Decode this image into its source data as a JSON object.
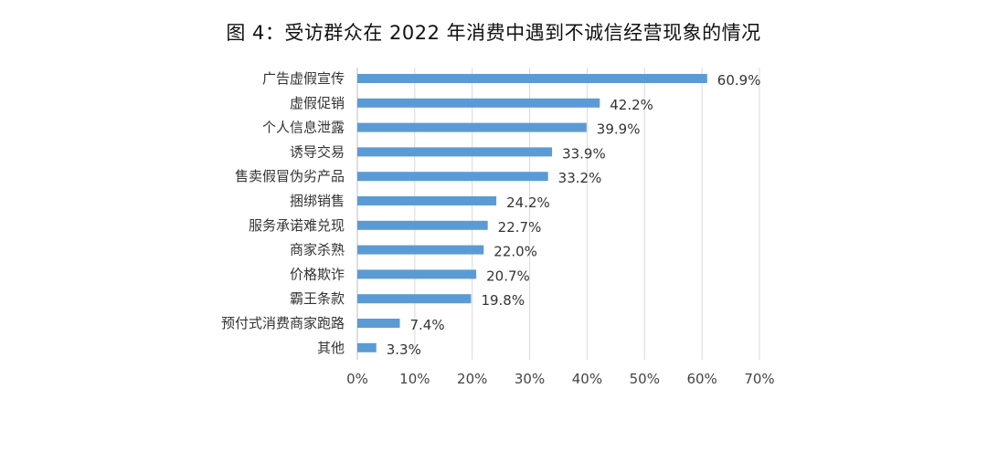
{
  "chart_data": {
    "type": "bar",
    "orientation": "horizontal",
    "title": "图 4：受访群众在 2022 年消费中遇到不诚信经营现象的情况",
    "xlabel": "",
    "ylabel": "",
    "categories": [
      "广告虚假宣传",
      "虚假促销",
      "个人信息泄露",
      "诱导交易",
      "售卖假冒伪劣产品",
      "捆绑销售",
      "服务承诺难兑现",
      "商家杀熟",
      "价格欺诈",
      "霸王条款",
      "预付式消费商家跑路",
      "其他"
    ],
    "values": [
      60.9,
      42.2,
      39.9,
      33.9,
      33.2,
      24.2,
      22.7,
      22.0,
      20.7,
      19.8,
      7.4,
      3.3
    ],
    "value_labels": [
      "60.9%",
      "42.2%",
      "39.9%",
      "33.9%",
      "33.2%",
      "24.2%",
      "22.7%",
      "22.0%",
      "20.7%",
      "19.8%",
      "7.4%",
      "3.3%"
    ],
    "xlim": [
      0,
      70
    ],
    "x_ticks": [
      "0%",
      "10%",
      "20%",
      "30%",
      "40%",
      "50%",
      "60%",
      "70%"
    ],
    "grid": "vertical",
    "legend": "none",
    "bar_color": "#5b9bd5",
    "grid_color": "#d9d9d9"
  }
}
